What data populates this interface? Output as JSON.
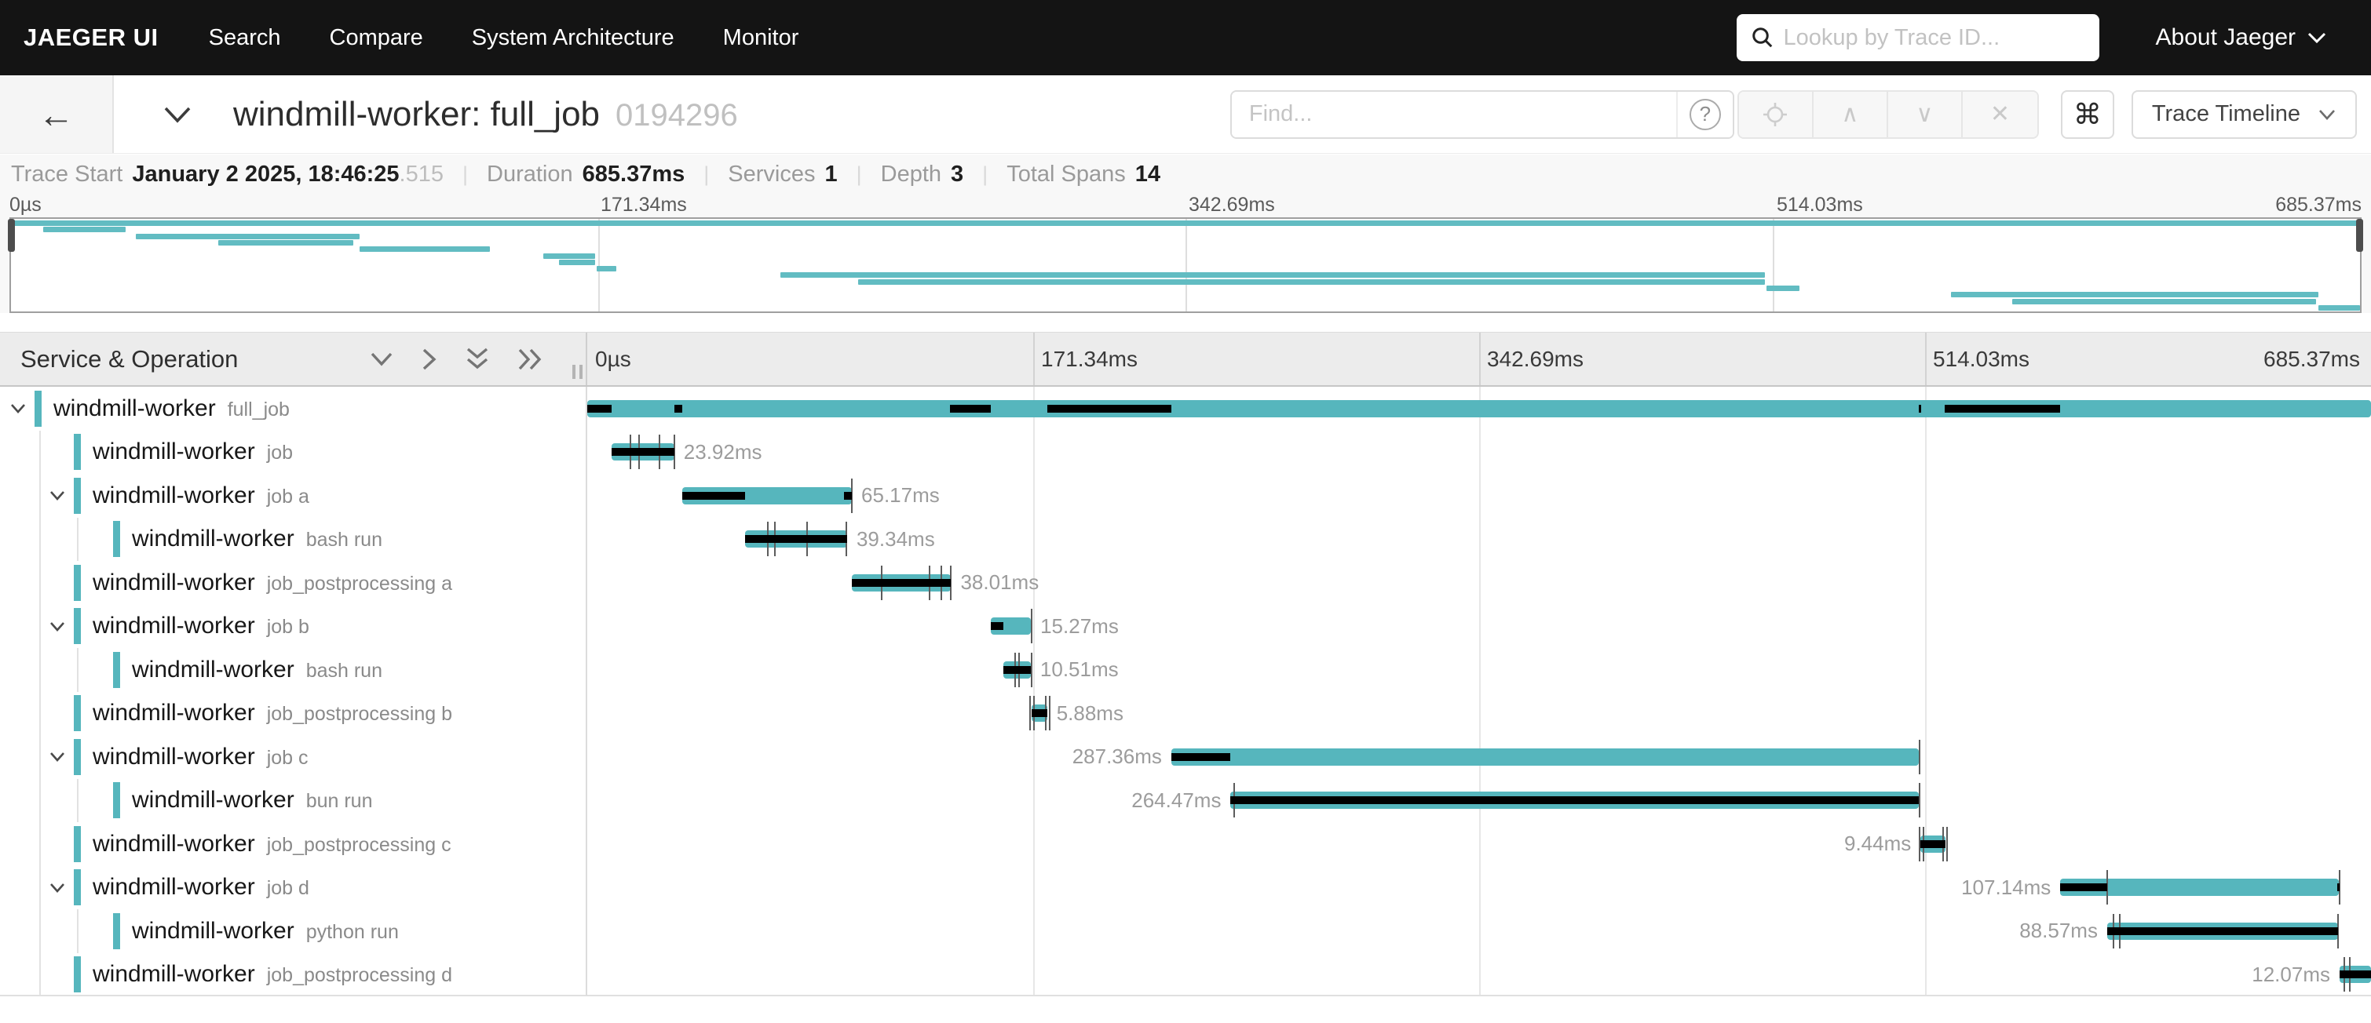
{
  "theme": {
    "span_color": "#56b6bd",
    "critical_path_color": "#000000",
    "nav_background": "#141414",
    "header_background": "#ececec"
  },
  "nav": {
    "brand": "JAEGER UI",
    "links": [
      "Search",
      "Compare",
      "System Architecture",
      "Monitor"
    ],
    "search_placeholder": "Lookup by Trace ID...",
    "about": "About Jaeger"
  },
  "trace_header": {
    "title": "windmill-worker: full_job",
    "trace_id": "0194296",
    "find_placeholder": "Find...",
    "help_icon": "?",
    "prev_icon": "∧",
    "next_icon": "∨",
    "clear_icon": "✕",
    "cmd_icon": "⌘",
    "view_select": "Trace Timeline"
  },
  "trace_info": {
    "items": [
      {
        "label": "Trace Start",
        "value": "January 2 2025, 18:46:25",
        "suffix": ".515"
      },
      {
        "label": "Duration",
        "value": "685.37ms"
      },
      {
        "label": "Services",
        "value": "1"
      },
      {
        "label": "Depth",
        "value": "3"
      },
      {
        "label": "Total Spans",
        "value": "14"
      }
    ]
  },
  "timeline": {
    "duration_ms": 685.37,
    "tick_labels": [
      "0µs",
      "171.34ms",
      "342.69ms",
      "514.03ms",
      "685.37ms"
    ],
    "tick_positions_pct": [
      0,
      25,
      50,
      75,
      100
    ],
    "left_header": "Service & Operation"
  },
  "spans": [
    {
      "service": "windmill-worker",
      "op": "full_job",
      "depth": 0,
      "parent": true,
      "start_ms": 0,
      "duration_ms": 685.37,
      "label": "",
      "label_side": "none",
      "critical_ms": [
        [
          0,
          9.5
        ],
        [
          33.4,
          36.5
        ],
        [
          139.5,
          155.2
        ],
        [
          176.9,
          224.4
        ],
        [
          511.7,
          512.4
        ],
        [
          521.7,
          566.0
        ]
      ],
      "log_ticks_ms": []
    },
    {
      "service": "windmill-worker",
      "op": "job",
      "depth": 1,
      "parent": false,
      "start_ms": 9.5,
      "duration_ms": 23.92,
      "label": "23.92ms",
      "label_side": "right",
      "critical_ms": [
        [
          9.5,
          33.42
        ]
      ],
      "log_ticks_ms": [
        16.6,
        19.9,
        27.8,
        33.5
      ]
    },
    {
      "service": "windmill-worker",
      "op": "job a",
      "depth": 1,
      "parent": true,
      "start_ms": 36.5,
      "duration_ms": 65.17,
      "label": "65.17ms",
      "label_side": "right",
      "critical_ms": [
        [
          36.5,
          60.5
        ],
        [
          98.6,
          101.67
        ]
      ],
      "log_ticks_ms": [
        101.8
      ]
    },
    {
      "service": "windmill-worker",
      "op": "bash run",
      "depth": 2,
      "parent": false,
      "start_ms": 60.5,
      "duration_ms": 39.34,
      "label": "39.34ms",
      "label_side": "right",
      "critical_ms": [
        [
          60.5,
          99.84
        ]
      ],
      "log_ticks_ms": [
        69.5,
        72.0,
        84.5,
        99.5
      ]
    },
    {
      "service": "windmill-worker",
      "op": "job_postprocessing a",
      "depth": 1,
      "parent": false,
      "start_ms": 101.8,
      "duration_ms": 38.01,
      "label": "38.01ms",
      "label_side": "right",
      "critical_ms": [
        [
          101.8,
          139.81
        ]
      ],
      "log_ticks_ms": [
        113.0,
        131.5,
        136.0,
        139.6
      ]
    },
    {
      "service": "windmill-worker",
      "op": "job b",
      "depth": 1,
      "parent": true,
      "start_ms": 155.2,
      "duration_ms": 15.27,
      "label": "15.27ms",
      "label_side": "right",
      "critical_ms": [
        [
          155.2,
          159.9
        ]
      ],
      "log_ticks_ms": [
        170.6
      ]
    },
    {
      "service": "windmill-worker",
      "op": "bash run",
      "depth": 2,
      "parent": false,
      "start_ms": 159.9,
      "duration_ms": 10.51,
      "label": "10.51ms",
      "label_side": "right",
      "critical_ms": [
        [
          159.9,
          170.41
        ]
      ],
      "log_ticks_ms": [
        164.3,
        165.8,
        170.6
      ]
    },
    {
      "service": "windmill-worker",
      "op": "job_postprocessing b",
      "depth": 1,
      "parent": false,
      "start_ms": 170.8,
      "duration_ms": 5.88,
      "label": "5.88ms",
      "label_side": "right",
      "critical_ms": [
        [
          170.8,
          176.68
        ]
      ],
      "log_ticks_ms": [
        170.2,
        171.6,
        176.3,
        177.8
      ]
    },
    {
      "service": "windmill-worker",
      "op": "job c",
      "depth": 1,
      "parent": true,
      "start_ms": 224.4,
      "duration_ms": 287.36,
      "label": "287.36ms",
      "label_side": "left",
      "critical_ms": [
        [
          224.4,
          247.2
        ]
      ],
      "log_ticks_ms": [
        511.9
      ]
    },
    {
      "service": "windmill-worker",
      "op": "bun run",
      "depth": 2,
      "parent": false,
      "start_ms": 247.2,
      "duration_ms": 264.47,
      "label": "264.47ms",
      "label_side": "left",
      "critical_ms": [
        [
          247.2,
          511.67
        ]
      ],
      "log_ticks_ms": [
        248.5,
        511.8
      ]
    },
    {
      "service": "windmill-worker",
      "op": "job_postprocessing c",
      "depth": 1,
      "parent": false,
      "start_ms": 512.3,
      "duration_ms": 9.44,
      "label": "9.44ms",
      "label_side": "left",
      "critical_ms": [
        [
          512.3,
          521.74
        ]
      ],
      "log_ticks_ms": [
        512.0,
        513.4,
        521.0,
        522.4
      ]
    },
    {
      "service": "windmill-worker",
      "op": "job d",
      "depth": 1,
      "parent": true,
      "start_ms": 566.0,
      "duration_ms": 107.14,
      "label": "107.14ms",
      "label_side": "left",
      "critical_ms": [
        [
          566.0,
          583.9
        ],
        [
          672.5,
          673.14
        ]
      ],
      "log_ticks_ms": [
        583.9,
        673.3
      ]
    },
    {
      "service": "windmill-worker",
      "op": "python run",
      "depth": 2,
      "parent": false,
      "start_ms": 584.0,
      "duration_ms": 88.57,
      "label": "88.57ms",
      "label_side": "left",
      "critical_ms": [
        [
          584.0,
          672.57
        ]
      ],
      "log_ticks_ms": [
        586.5,
        588.7,
        672.6
      ]
    },
    {
      "service": "windmill-worker",
      "op": "job_postprocessing d",
      "depth": 1,
      "parent": false,
      "start_ms": 673.3,
      "duration_ms": 12.07,
      "label": "12.07ms",
      "label_side": "left",
      "critical_ms": [
        [
          673.3,
          685.37
        ]
      ],
      "log_ticks_ms": [
        675.0,
        677.2
      ]
    }
  ]
}
